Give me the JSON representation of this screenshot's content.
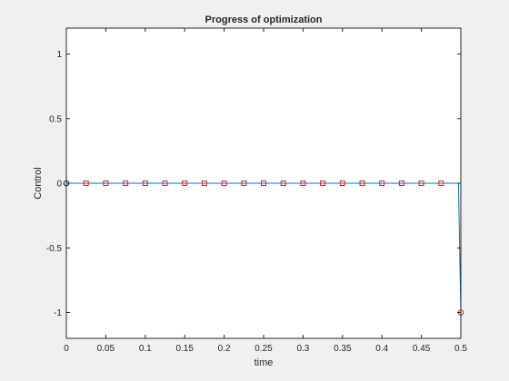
{
  "chart_data": {
    "type": "line",
    "title": "Progress of optimization",
    "xlabel": "time",
    "ylabel": "Control",
    "xlim": [
      0,
      0.5
    ],
    "ylim": [
      -1.2,
      1.2
    ],
    "grid": false,
    "x_ticks": [
      0,
      0.05,
      0.1,
      0.15,
      0.2,
      0.25,
      0.3,
      0.35,
      0.4,
      0.45,
      0.5
    ],
    "x_tick_labels": [
      "0",
      "0.05",
      "0.1",
      "0.15",
      "0.2",
      "0.25",
      "0.3",
      "0.35",
      "0.4",
      "0.45",
      "0.5"
    ],
    "y_ticks": [
      -1,
      -0.5,
      0,
      0.5,
      1
    ],
    "y_tick_labels": [
      "-1",
      "-0.5",
      "0",
      "0.5",
      "1"
    ],
    "series": [
      {
        "style": "line",
        "color": "#0072bd",
        "x": [
          0,
          0.025,
          0.05,
          0.075,
          0.1,
          0.125,
          0.15,
          0.175,
          0.2,
          0.225,
          0.25,
          0.275,
          0.3,
          0.325,
          0.35,
          0.375,
          0.4,
          0.425,
          0.45,
          0.475,
          0.497,
          0.5
        ],
        "y": [
          0,
          0,
          0,
          0,
          0,
          0,
          0,
          0,
          0,
          0,
          0,
          0,
          0,
          0,
          0,
          0,
          0,
          0,
          0,
          0,
          0,
          -1
        ]
      },
      {
        "style": "markers",
        "marker": "square",
        "color": "#d62728",
        "x": [
          0.025,
          0.05,
          0.075,
          0.1,
          0.125,
          0.15,
          0.175,
          0.2,
          0.225,
          0.25,
          0.275,
          0.3,
          0.325,
          0.35,
          0.375,
          0.4,
          0.425,
          0.45,
          0.475
        ],
        "y": [
          0,
          0,
          0,
          0,
          0,
          0,
          0,
          0,
          0,
          0,
          0,
          0,
          0,
          0,
          0,
          0,
          0,
          0,
          0
        ]
      },
      {
        "style": "markers",
        "marker": "circle",
        "color": "#d62728",
        "x": [
          0.5
        ],
        "y": [
          -1
        ]
      },
      {
        "style": "markers",
        "marker": "circle",
        "color": "#1f1f1f",
        "x": [
          0
        ],
        "y": [
          0
        ]
      }
    ]
  }
}
